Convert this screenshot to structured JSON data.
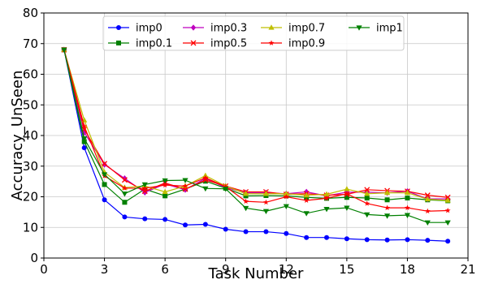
{
  "chart_data": {
    "type": "line",
    "title": "",
    "xlabel": "Task Number",
    "ylabel": "Accuracy_UnSeen",
    "xlim": [
      0,
      21
    ],
    "ylim": [
      0,
      80
    ],
    "xticks": [
      0,
      3,
      6,
      9,
      12,
      15,
      18,
      21
    ],
    "yticks": [
      0,
      10,
      20,
      30,
      40,
      50,
      60,
      70,
      80
    ],
    "grid": true,
    "legend_position": "top-center",
    "x": [
      1,
      2,
      3,
      4,
      5,
      6,
      7,
      8,
      9,
      10,
      11,
      12,
      13,
      14,
      15,
      16,
      17,
      18,
      19,
      20
    ],
    "series": [
      {
        "name": "imp0",
        "color": "#0000ff",
        "marker": "circle",
        "values": [
          68,
          36,
          19,
          13.4,
          12.8,
          12.6,
          10.8,
          11.0,
          9.4,
          8.6,
          8.6,
          8.0,
          6.7,
          6.7,
          6.3,
          6.0,
          5.9,
          6.0,
          5.8,
          5.5
        ]
      },
      {
        "name": "imp0.1",
        "color": "#008000",
        "marker": "square",
        "values": [
          68,
          38,
          24,
          18.2,
          22.5,
          20.3,
          22.5,
          25.1,
          22.8,
          20.3,
          20.4,
          20.3,
          19.8,
          19.5,
          19.8,
          19.6,
          19.0,
          19.6,
          19.0,
          18.7
        ]
      },
      {
        "name": "imp0.3",
        "color": "#bf00bf",
        "marker": "diamond",
        "values": [
          68,
          41,
          30.5,
          26.0,
          21.4,
          24.2,
          22.3,
          26.0,
          23.0,
          21.3,
          21.3,
          21.0,
          21.6,
          20.3,
          21.5,
          21.5,
          21.3,
          21.8,
          19.3,
          19.3
        ]
      },
      {
        "name": "imp0.5",
        "color": "#ff0000",
        "marker": "x",
        "values": [
          68,
          42,
          30.8,
          25.5,
          21.8,
          24.5,
          22.5,
          25.5,
          23.5,
          21.6,
          21.6,
          20.8,
          21.0,
          20.5,
          20.8,
          22.3,
          22.0,
          21.8,
          20.5,
          19.8
        ]
      },
      {
        "name": "imp0.7",
        "color": "#bfbf00",
        "marker": "triangle-up",
        "values": [
          68,
          45,
          28,
          23.0,
          23.5,
          21.6,
          23.5,
          26.9,
          23.5,
          21.0,
          21.0,
          21.0,
          20.5,
          20.8,
          22.5,
          21.0,
          21.3,
          21.3,
          19.2,
          18.8
        ]
      },
      {
        "name": "imp0.9",
        "color": "#ff0000",
        "marker": "star",
        "values": [
          68,
          43,
          26.8,
          22.8,
          22.8,
          23.8,
          23.5,
          26.2,
          23.3,
          18.5,
          18.2,
          20.0,
          18.8,
          19.5,
          21.0,
          17.8,
          16.4,
          16.4,
          15.3,
          15.5
        ]
      },
      {
        "name": "imp1",
        "color": "#008000",
        "marker": "triangle-down",
        "values": [
          68,
          39,
          27.3,
          21.0,
          24.0,
          25.3,
          25.4,
          22.7,
          22.6,
          16.3,
          15.3,
          16.9,
          14.6,
          16.0,
          16.4,
          14.2,
          13.8,
          14.0,
          11.6,
          11.6
        ]
      }
    ]
  }
}
